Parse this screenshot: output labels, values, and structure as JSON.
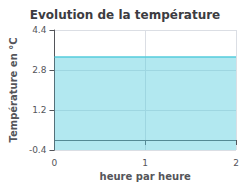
{
  "chart_data": {
    "type": "area",
    "title": "Evolution de la température",
    "xlabel": "heure par heure",
    "ylabel": "Température en °C",
    "x": [
      0,
      2
    ],
    "values": [
      3.32,
      3.32
    ],
    "color": "#55ccdd",
    "xlim": [
      0,
      2
    ],
    "ylim": [
      -0.4,
      4.4
    ],
    "xticks": [
      0,
      1,
      2
    ],
    "yticks": [
      -0.4,
      1.2,
      2.8,
      4.4
    ],
    "grid": true
  }
}
